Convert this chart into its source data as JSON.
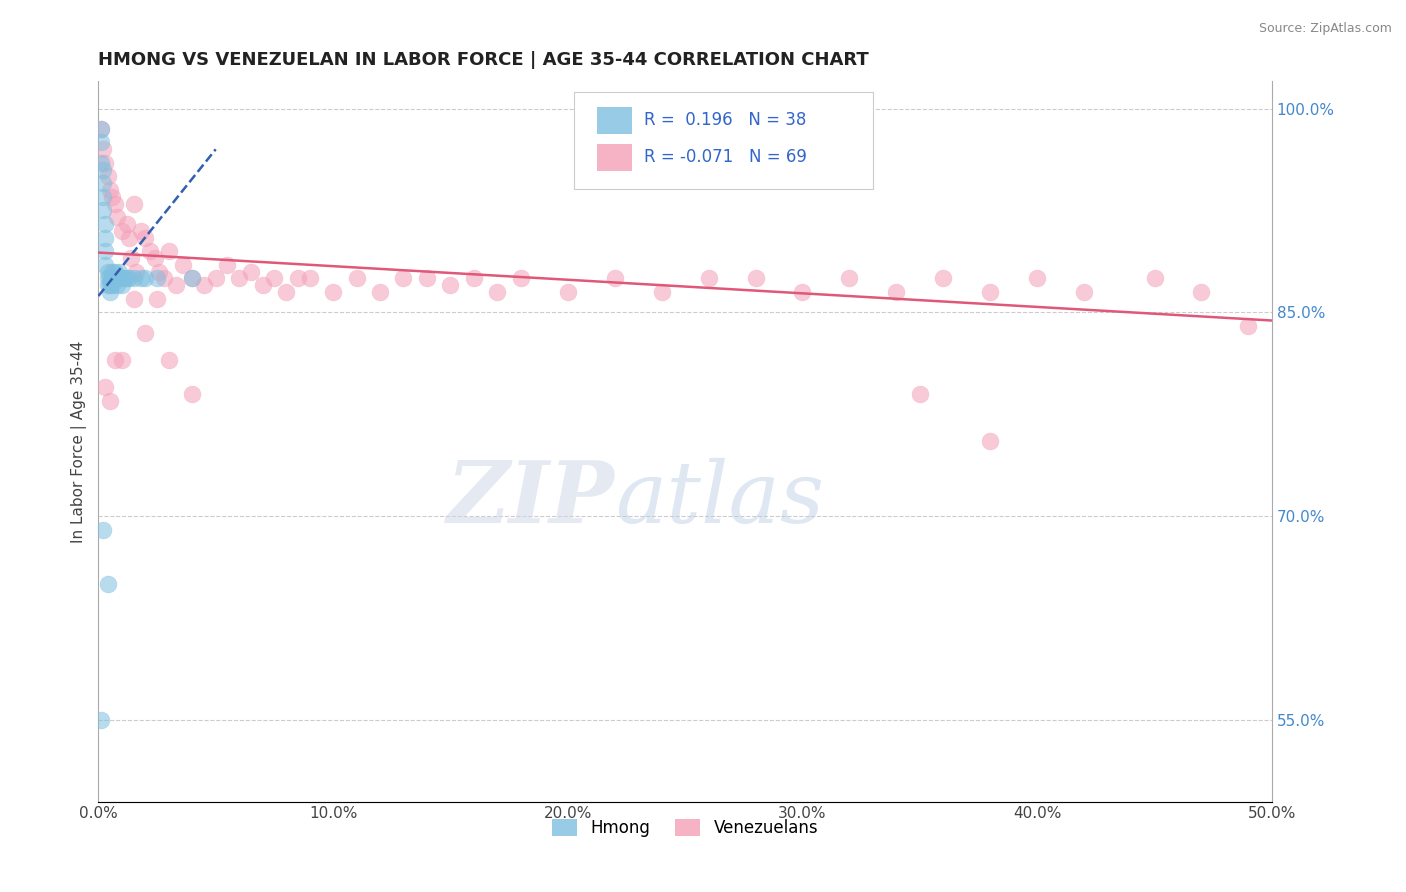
{
  "title": "HMONG VS VENEZUELAN IN LABOR FORCE | AGE 35-44 CORRELATION CHART",
  "source_text": "Source: ZipAtlas.com",
  "ylabel": "In Labor Force | Age 35-44",
  "xlim": [
    0.0,
    0.5
  ],
  "ylim": [
    0.49,
    1.02
  ],
  "xticks": [
    0.0,
    0.1,
    0.2,
    0.3,
    0.4,
    0.5
  ],
  "xtick_labels": [
    "0.0%",
    "10.0%",
    "20.0%",
    "30.0%",
    "40.0%",
    "50.0%"
  ],
  "yticks_right": [
    1.0,
    0.85,
    0.7,
    0.55
  ],
  "ytick_labels_right": [
    "100.0%",
    "85.0%",
    "70.0%",
    "55.0%"
  ],
  "legend_hmong_label": "Hmong",
  "legend_venezuelan_label": "Venezuelans",
  "R_hmong": "0.196",
  "N_hmong": "38",
  "R_venezuelan": "-0.071",
  "N_venezuelan": "69",
  "blue_color": "#7fbfdf",
  "pink_color": "#f4a0b8",
  "blue_line_color": "#3060b0",
  "pink_line_color": "#e05878",
  "watermark_zip": "ZIP",
  "watermark_atlas": "atlas",
  "background_color": "#ffffff",
  "hmong_x": [
    0.001,
    0.001,
    0.001,
    0.002,
    0.002,
    0.002,
    0.002,
    0.003,
    0.003,
    0.003,
    0.003,
    0.004,
    0.004,
    0.004,
    0.005,
    0.005,
    0.005,
    0.006,
    0.006,
    0.006,
    0.007,
    0.007,
    0.008,
    0.008,
    0.009,
    0.01,
    0.01,
    0.011,
    0.012,
    0.013,
    0.015,
    0.018,
    0.02,
    0.025,
    0.002,
    0.004,
    0.04,
    0.001
  ],
  "hmong_y": [
    0.985,
    0.975,
    0.96,
    0.955,
    0.945,
    0.935,
    0.925,
    0.915,
    0.905,
    0.895,
    0.885,
    0.88,
    0.875,
    0.87,
    0.875,
    0.87,
    0.865,
    0.88,
    0.875,
    0.87,
    0.88,
    0.875,
    0.875,
    0.87,
    0.88,
    0.875,
    0.87,
    0.875,
    0.875,
    0.875,
    0.875,
    0.875,
    0.875,
    0.875,
    0.69,
    0.65,
    0.875,
    0.55
  ],
  "venezuelan_x": [
    0.001,
    0.002,
    0.003,
    0.004,
    0.005,
    0.006,
    0.007,
    0.008,
    0.01,
    0.012,
    0.013,
    0.014,
    0.015,
    0.016,
    0.018,
    0.02,
    0.022,
    0.024,
    0.026,
    0.028,
    0.03,
    0.033,
    0.036,
    0.04,
    0.045,
    0.05,
    0.055,
    0.06,
    0.065,
    0.07,
    0.075,
    0.08,
    0.085,
    0.09,
    0.1,
    0.11,
    0.12,
    0.13,
    0.14,
    0.15,
    0.16,
    0.17,
    0.18,
    0.2,
    0.22,
    0.24,
    0.26,
    0.28,
    0.3,
    0.32,
    0.34,
    0.36,
    0.38,
    0.4,
    0.42,
    0.45,
    0.47,
    0.49,
    0.015,
    0.025,
    0.02,
    0.01,
    0.005,
    0.003,
    0.007,
    0.03,
    0.04,
    0.35,
    0.38
  ],
  "venezuelan_y": [
    0.985,
    0.97,
    0.96,
    0.95,
    0.94,
    0.935,
    0.93,
    0.92,
    0.91,
    0.915,
    0.905,
    0.89,
    0.93,
    0.88,
    0.91,
    0.905,
    0.895,
    0.89,
    0.88,
    0.875,
    0.895,
    0.87,
    0.885,
    0.875,
    0.87,
    0.875,
    0.885,
    0.875,
    0.88,
    0.87,
    0.875,
    0.865,
    0.875,
    0.875,
    0.865,
    0.875,
    0.865,
    0.875,
    0.875,
    0.87,
    0.875,
    0.865,
    0.875,
    0.865,
    0.875,
    0.865,
    0.875,
    0.875,
    0.865,
    0.875,
    0.865,
    0.875,
    0.865,
    0.875,
    0.865,
    0.875,
    0.865,
    0.84,
    0.86,
    0.86,
    0.835,
    0.815,
    0.785,
    0.795,
    0.815,
    0.815,
    0.79,
    0.79,
    0.755
  ],
  "hmong_trendline_x": [
    0.0,
    0.05
  ],
  "hmong_trendline_y": [
    0.862,
    0.97
  ],
  "venezuelan_trendline_x": [
    0.0,
    0.5
  ],
  "venezuelan_trendline_y": [
    0.894,
    0.844
  ]
}
